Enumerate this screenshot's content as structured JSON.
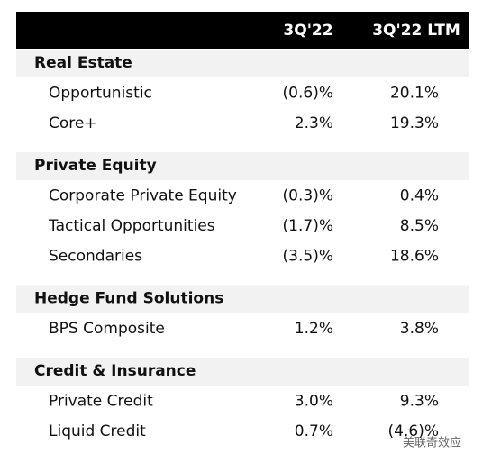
{
  "header": {
    "columns": [
      "3Q'22",
      "3Q'22 LTM"
    ]
  },
  "sections": [
    {
      "title": "Real Estate",
      "rows": [
        {
          "label": "Opportunistic",
          "values": [
            "(0.6)%",
            "20.1%"
          ]
        },
        {
          "label": "Core+",
          "values": [
            "2.3%",
            "19.3%"
          ]
        }
      ]
    },
    {
      "title": "Private Equity",
      "rows": [
        {
          "label": "Corporate Private Equity",
          "values": [
            "(0.3)%",
            "0.4%"
          ]
        },
        {
          "label": "Tactical Opportunities",
          "values": [
            "(1.7)%",
            "8.5%"
          ]
        },
        {
          "label": "Secondaries",
          "values": [
            "(3.5)%",
            "18.6%"
          ]
        }
      ]
    },
    {
      "title": "Hedge Fund Solutions",
      "rows": [
        {
          "label": "BPS Composite",
          "values": [
            "1.2%",
            "3.8%"
          ]
        }
      ]
    },
    {
      "title": "Credit & Insurance",
      "rows": [
        {
          "label": "Private Credit",
          "values": [
            "3.0%",
            "9.3%"
          ]
        },
        {
          "label": "Liquid Credit",
          "values": [
            "0.7%",
            "(4.6)%"
          ]
        }
      ]
    }
  ],
  "watermark": "美联奇效应"
}
